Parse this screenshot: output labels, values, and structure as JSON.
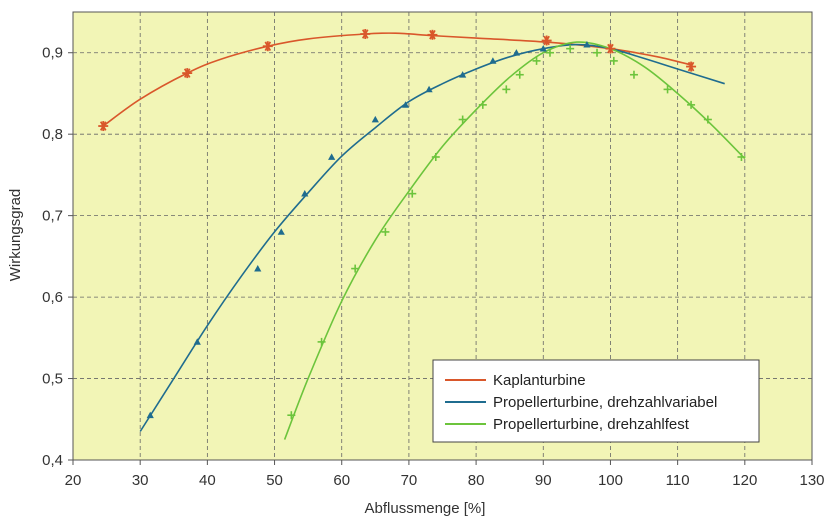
{
  "chart_data": {
    "type": "line",
    "xlabel": "Abflussmenge [%]",
    "ylabel": "Wirkungsgrad",
    "xlim": [
      20,
      130
    ],
    "ylim": [
      0.4,
      0.95
    ],
    "x_ticks": [
      20,
      30,
      40,
      50,
      60,
      70,
      80,
      90,
      100,
      110,
      120,
      130
    ],
    "x_tick_labels": [
      "20",
      "30",
      "40",
      "50",
      "60",
      "70",
      "80",
      "90",
      "100",
      "110",
      "120",
      "130"
    ],
    "y_ticks": [
      0.4,
      0.5,
      0.6,
      0.7,
      0.8,
      0.9
    ],
    "y_tick_labels": [
      "0,4",
      "0,5",
      "0,6",
      "0,7",
      "0,8",
      "0,9"
    ],
    "grid": "dashed",
    "plot_background": "#f2f5b6",
    "legend_position": "bottom-right",
    "series": [
      {
        "name": "Kaplanturbine",
        "color": "#d9572b",
        "marker": "asterisk",
        "points": [
          [
            24.5,
            0.81
          ],
          [
            37,
            0.875
          ],
          [
            49,
            0.908
          ],
          [
            63.5,
            0.923
          ],
          [
            73.5,
            0.922
          ],
          [
            90.5,
            0.915
          ],
          [
            100,
            0.905
          ],
          [
            112,
            0.883
          ]
        ],
        "curve": [
          [
            24.5,
            0.81
          ],
          [
            30,
            0.843
          ],
          [
            37,
            0.875
          ],
          [
            42,
            0.892
          ],
          [
            49,
            0.908
          ],
          [
            55,
            0.917
          ],
          [
            63.5,
            0.923
          ],
          [
            68,
            0.924
          ],
          [
            73.5,
            0.921
          ],
          [
            80,
            0.918
          ],
          [
            90.5,
            0.913
          ],
          [
            100,
            0.905
          ],
          [
            107,
            0.895
          ],
          [
            112,
            0.885
          ]
        ]
      },
      {
        "name": "Propellerturbine, drehzahlvariabel",
        "color": "#1f6c8f",
        "marker": "triangle",
        "points": [
          [
            31.5,
            0.455
          ],
          [
            38.5,
            0.545
          ],
          [
            47.5,
            0.635
          ],
          [
            51,
            0.68
          ],
          [
            54.5,
            0.727
          ],
          [
            58.5,
            0.772
          ],
          [
            65,
            0.818
          ],
          [
            69.5,
            0.836
          ],
          [
            73,
            0.855
          ],
          [
            78,
            0.873
          ],
          [
            82.5,
            0.89
          ],
          [
            86,
            0.9
          ],
          [
            90,
            0.905
          ],
          [
            96.5,
            0.91
          ]
        ],
        "curve": [
          [
            30,
            0.435
          ],
          [
            35,
            0.5
          ],
          [
            40,
            0.565
          ],
          [
            45,
            0.625
          ],
          [
            50,
            0.68
          ],
          [
            55,
            0.728
          ],
          [
            60,
            0.773
          ],
          [
            65,
            0.808
          ],
          [
            70,
            0.84
          ],
          [
            75,
            0.862
          ],
          [
            80,
            0.88
          ],
          [
            85,
            0.895
          ],
          [
            90,
            0.905
          ],
          [
            95,
            0.91
          ],
          [
            100,
            0.905
          ],
          [
            105,
            0.893
          ],
          [
            110,
            0.88
          ],
          [
            117,
            0.862
          ]
        ]
      },
      {
        "name": "Propellerturbine, drehzahlfest",
        "color": "#6cc43c",
        "marker": "plus",
        "points": [
          [
            52.5,
            0.455
          ],
          [
            57,
            0.545
          ],
          [
            62,
            0.635
          ],
          [
            66.5,
            0.68
          ],
          [
            70.5,
            0.727
          ],
          [
            74,
            0.772
          ],
          [
            78,
            0.818
          ],
          [
            81,
            0.836
          ],
          [
            84.5,
            0.855
          ],
          [
            86.5,
            0.873
          ],
          [
            89,
            0.89
          ],
          [
            91,
            0.9
          ],
          [
            94,
            0.905
          ],
          [
            98,
            0.9
          ],
          [
            100.5,
            0.89
          ],
          [
            103.5,
            0.873
          ],
          [
            108.5,
            0.855
          ],
          [
            112,
            0.836
          ],
          [
            114.5,
            0.818
          ],
          [
            119.5,
            0.772
          ]
        ],
        "curve": [
          [
            51.5,
            0.425
          ],
          [
            55,
            0.5
          ],
          [
            60,
            0.595
          ],
          [
            65,
            0.67
          ],
          [
            70,
            0.73
          ],
          [
            75,
            0.785
          ],
          [
            80,
            0.83
          ],
          [
            85,
            0.87
          ],
          [
            90,
            0.9
          ],
          [
            95,
            0.913
          ],
          [
            100,
            0.905
          ],
          [
            105,
            0.883
          ],
          [
            110,
            0.85
          ],
          [
            115,
            0.812
          ],
          [
            120,
            0.77
          ]
        ]
      }
    ]
  }
}
